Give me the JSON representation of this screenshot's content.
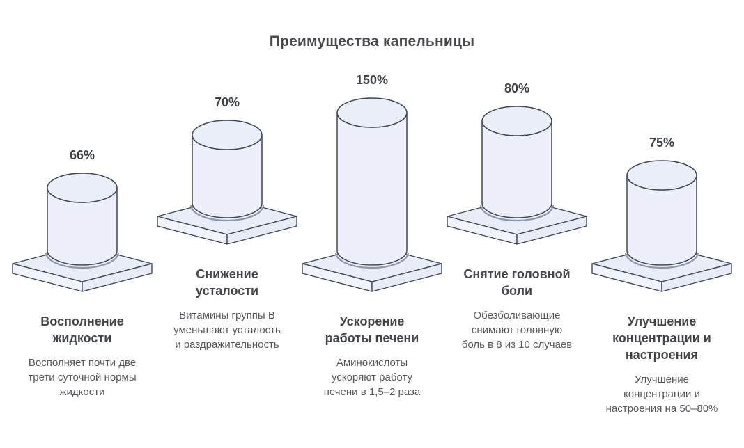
{
  "title": "Преимущества капельницы",
  "chart_data": {
    "type": "bar",
    "title": "Преимущества капельницы",
    "style": "isometric 3D cylinders on square pedestals",
    "categories": [
      "Восполнение жидкости",
      "Снижение усталости",
      "Ускорение работы печени",
      "Снятие головной боли",
      "Улучшение концентрации и настроения"
    ],
    "values": [
      66,
      70,
      150,
      80,
      75
    ],
    "value_labels": [
      "66%",
      "70%",
      "150%",
      "80%",
      "75%"
    ],
    "unit": "%",
    "descriptions": [
      "Восполняет почти две трети суточной нормы жидкости",
      "Витамины группы B уменьшают усталость и раздражительность",
      "Аминокислоты ускоряют работу печени в 1,5–2 раза",
      "Обезболивающие снимают головную боль в 8 из 10 случаев",
      "Улучшение концентрации и настроения на 50–80%"
    ],
    "legend": "none",
    "grid": false
  },
  "columns": [
    {
      "value": 66,
      "value_label": "66%",
      "heading": "Восполнение\nжидкости",
      "description": "Восполняет почти две\nтрети суточной нормы\nжидкости"
    },
    {
      "value": 70,
      "value_label": "70%",
      "heading": "Снижение\nусталости",
      "description": "Витамины группы B\nуменьшают усталость\nи раздражительность"
    },
    {
      "value": 150,
      "value_label": "150%",
      "heading": "Ускорение\nработы печени",
      "description": "Аминокислоты\nускоряют работу\nпечени в 1,5–2 раза"
    },
    {
      "value": 80,
      "value_label": "80%",
      "heading": "Снятие головной\nболи",
      "description": "Обезболивающие\nснимают головную\nболь в 8 из 10 случаев"
    },
    {
      "value": 75,
      "value_label": "75%",
      "heading": "Улучшение\nконцентрации и\nнастроения",
      "description": "Улучшение\nконцентрации и\nнастроения на 50–80%"
    }
  ],
  "colors": {
    "background": "#ffffff",
    "cylinder_fill": "#edf0fa",
    "cylinder_top_fill": "#e9eef9",
    "platform_top_fill": "#e9edf8",
    "platform_left_fill": "#f0f3fc",
    "platform_right_fill": "#e7ecf7",
    "outline": "#3f4959",
    "shadow": "#8e96a9",
    "title_text": "#46494d",
    "heading_text": "#43474c",
    "description_text": "#54585d"
  }
}
